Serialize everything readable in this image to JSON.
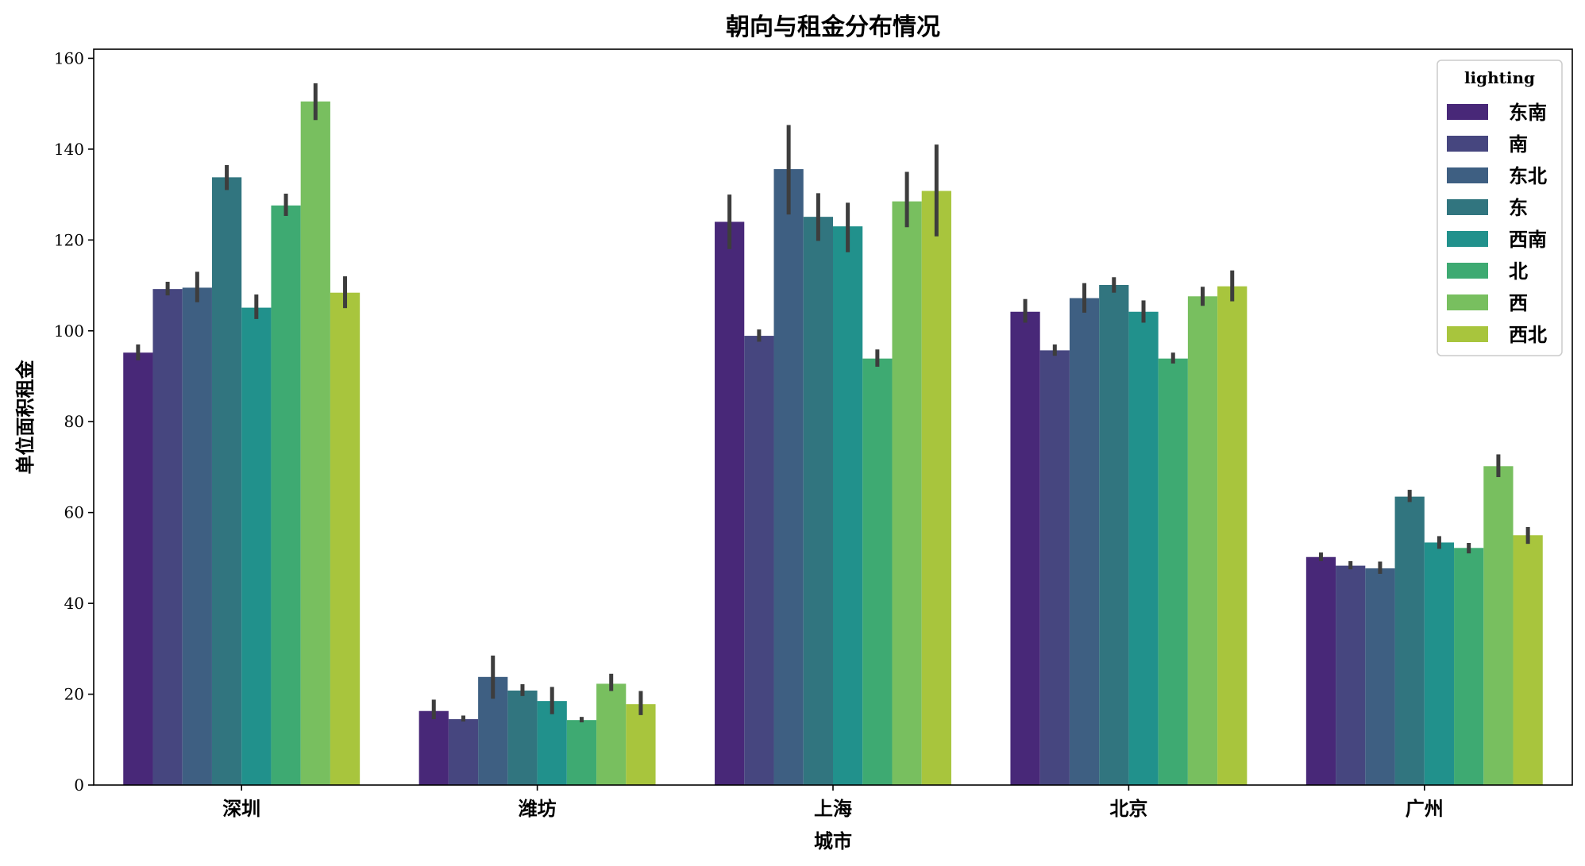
{
  "chart_data": {
    "type": "bar",
    "title": "朝向与租金分布情况",
    "xlabel": "城市",
    "ylabel": "单位面积租金",
    "ylim": [
      0,
      162
    ],
    "yticks": [
      0,
      20,
      40,
      60,
      80,
      100,
      120,
      140,
      160
    ],
    "grid": false,
    "legend_title": "lighting",
    "legend_position": "top-right",
    "categories": [
      "深圳",
      "潍坊",
      "上海",
      "北京",
      "广州"
    ],
    "series": [
      {
        "name": "东南",
        "color": "#482878",
        "values": [
          95.2,
          16.3,
          124.0,
          104.2,
          50.2
        ],
        "err_low": [
          93.5,
          14.5,
          118.0,
          101.8,
          49.3
        ],
        "err_high": [
          97.0,
          18.8,
          130.0,
          107.0,
          51.2
        ]
      },
      {
        "name": "南",
        "color": "#46467F",
        "values": [
          109.2,
          14.5,
          98.9,
          95.7,
          48.3
        ],
        "err_low": [
          107.8,
          14.0,
          97.6,
          94.5,
          47.5
        ],
        "err_high": [
          110.8,
          15.3,
          100.3,
          97.0,
          49.3
        ]
      },
      {
        "name": "东北",
        "color": "#3E5F82",
        "values": [
          109.5,
          23.8,
          135.6,
          107.2,
          47.7
        ],
        "err_low": [
          106.3,
          19.0,
          125.6,
          104.0,
          46.5
        ],
        "err_high": [
          113.0,
          28.5,
          145.3,
          110.5,
          49.2
        ]
      },
      {
        "name": "东",
        "color": "#31757F",
        "values": [
          133.8,
          20.8,
          125.1,
          110.1,
          63.5
        ],
        "err_low": [
          131.0,
          19.6,
          119.8,
          108.4,
          62.3
        ],
        "err_high": [
          136.5,
          22.2,
          130.3,
          111.8,
          65.0
        ]
      },
      {
        "name": "西南",
        "color": "#21918C",
        "values": [
          105.1,
          18.5,
          123.0,
          104.2,
          53.4
        ],
        "err_low": [
          102.6,
          15.6,
          117.3,
          101.8,
          52.0
        ],
        "err_high": [
          108.0,
          21.6,
          128.2,
          106.7,
          54.8
        ]
      },
      {
        "name": "北",
        "color": "#3EAA72",
        "values": [
          127.6,
          14.3,
          93.9,
          93.9,
          52.2
        ],
        "err_low": [
          125.3,
          13.8,
          92.1,
          92.8,
          51.0
        ],
        "err_high": [
          130.2,
          15.0,
          95.9,
          95.2,
          53.3
        ]
      },
      {
        "name": "西",
        "color": "#78BF5F",
        "values": [
          150.5,
          22.3,
          128.5,
          107.6,
          70.2
        ],
        "err_low": [
          146.4,
          20.7,
          122.8,
          105.5,
          67.8
        ],
        "err_high": [
          154.5,
          24.5,
          135.0,
          109.7,
          72.8
        ]
      },
      {
        "name": "西北",
        "color": "#A8C53D",
        "values": [
          108.4,
          17.8,
          130.8,
          109.8,
          55.0
        ],
        "err_low": [
          105.0,
          15.4,
          120.8,
          106.5,
          53.1
        ],
        "err_high": [
          112.0,
          20.7,
          141.0,
          113.3,
          56.8
        ]
      }
    ]
  }
}
